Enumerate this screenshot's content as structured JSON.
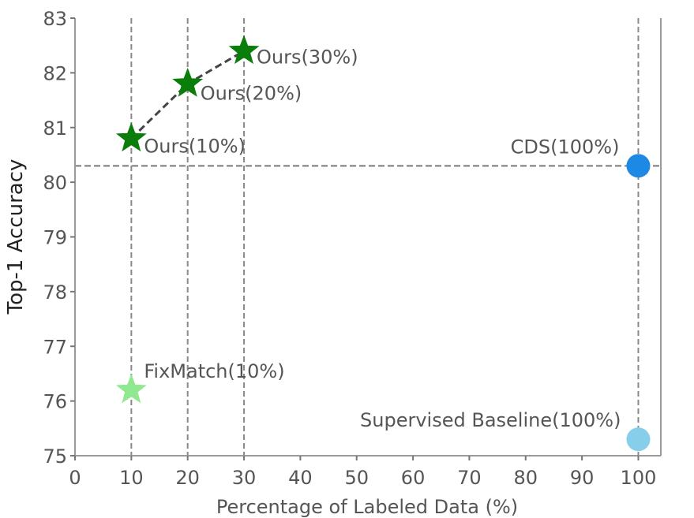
{
  "chart_data": {
    "type": "scatter",
    "title": "",
    "xlabel": "Percentage of Labeled Data (%)",
    "ylabel": "Top-1 Accuracy",
    "xlim": [
      0,
      104
    ],
    "ylim": [
      75,
      83
    ],
    "x_ticks": [
      0,
      10,
      20,
      30,
      40,
      50,
      60,
      70,
      80,
      90,
      100
    ],
    "y_ticks": [
      75,
      76,
      77,
      78,
      79,
      80,
      81,
      82,
      83
    ],
    "grid": "dashed reference lines",
    "reference_lines": {
      "vertical_x": [
        10,
        20,
        30,
        100
      ],
      "horizontal_y": [
        80.3
      ]
    },
    "series": [
      {
        "name": "Ours",
        "marker": "star",
        "color": "#0a7d0a",
        "connect": true,
        "points": [
          {
            "x": 10,
            "y": 80.8,
            "label": "Ours(10%)"
          },
          {
            "x": 20,
            "y": 81.8,
            "label": "Ours(20%)"
          },
          {
            "x": 30,
            "y": 82.4,
            "label": "Ours(30%)"
          }
        ]
      },
      {
        "name": "FixMatch",
        "marker": "star",
        "color": "#90e890",
        "connect": false,
        "points": [
          {
            "x": 10,
            "y": 76.2,
            "label": "FixMatch(10%)"
          }
        ]
      },
      {
        "name": "CDS",
        "marker": "circle",
        "color": "#1e88e5",
        "connect": false,
        "points": [
          {
            "x": 100,
            "y": 80.3,
            "label": "CDS(100%)"
          }
        ]
      },
      {
        "name": "Supervised Baseline",
        "marker": "circle",
        "color": "#87ceeb",
        "connect": false,
        "points": [
          {
            "x": 100,
            "y": 75.3,
            "label": "Supervised Baseline(100%)"
          }
        ]
      }
    ]
  }
}
